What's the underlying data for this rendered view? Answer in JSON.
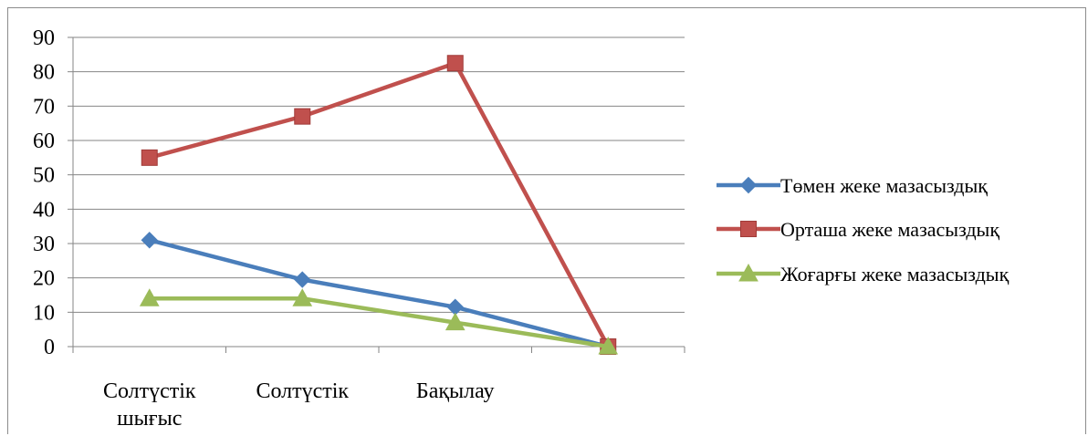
{
  "chart_data": {
    "type": "line",
    "title": "",
    "xlabel": "",
    "ylabel": "",
    "categories": [
      [
        "Солтүстік",
        "шығыс"
      ],
      [
        "Солтүстік"
      ],
      [
        "Бақылау"
      ],
      [
        ""
      ]
    ],
    "ylim": [
      0,
      90
    ],
    "yticks": [
      0,
      10,
      20,
      30,
      40,
      50,
      60,
      70,
      80,
      90
    ],
    "grid": "horizontal",
    "legend_position": "right",
    "series": [
      {
        "name": "Төмен жеке мазасыздық",
        "color": "#4a7ebb",
        "marker": "diamond",
        "values": [
          31,
          19.5,
          11.5,
          0
        ]
      },
      {
        "name": "Орташа жеке мазасыздық",
        "color": "#c0504d",
        "marker": "square",
        "values": [
          55,
          67,
          82.5,
          0
        ]
      },
      {
        "name": "Жоғарғы жеке мазасыздық",
        "color": "#9bbb59",
        "marker": "triangle",
        "values": [
          14,
          14,
          7,
          0
        ]
      }
    ]
  }
}
